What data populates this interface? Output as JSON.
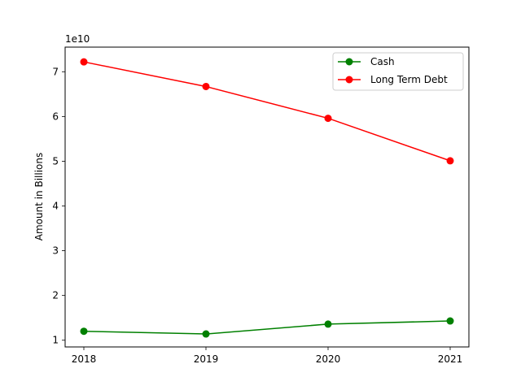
{
  "chart_data": {
    "type": "line",
    "title": "",
    "xlabel": "",
    "ylabel": "Amount in Billions",
    "offset_label": "1e10",
    "x": [
      "2018",
      "2019",
      "2020",
      "2021"
    ],
    "x_ticks": [
      "2018",
      "2019",
      "2020",
      "2021"
    ],
    "y_ticks": [
      1,
      2,
      3,
      4,
      5,
      6,
      7
    ],
    "y_tick_labels": [
      "1",
      "2",
      "3",
      "4",
      "5",
      "6",
      "7"
    ],
    "ylim": [
      0.85,
      7.55
    ],
    "grid": false,
    "legend_position": "upper-right",
    "series": [
      {
        "name": "Cash",
        "color": "#008000",
        "marker": "circle",
        "values": [
          1.2,
          1.14,
          1.36,
          1.43
        ]
      },
      {
        "name": "Long Term Debt",
        "color": "#ff0000",
        "marker": "circle",
        "values": [
          7.22,
          6.67,
          5.96,
          5.01
        ]
      }
    ]
  }
}
